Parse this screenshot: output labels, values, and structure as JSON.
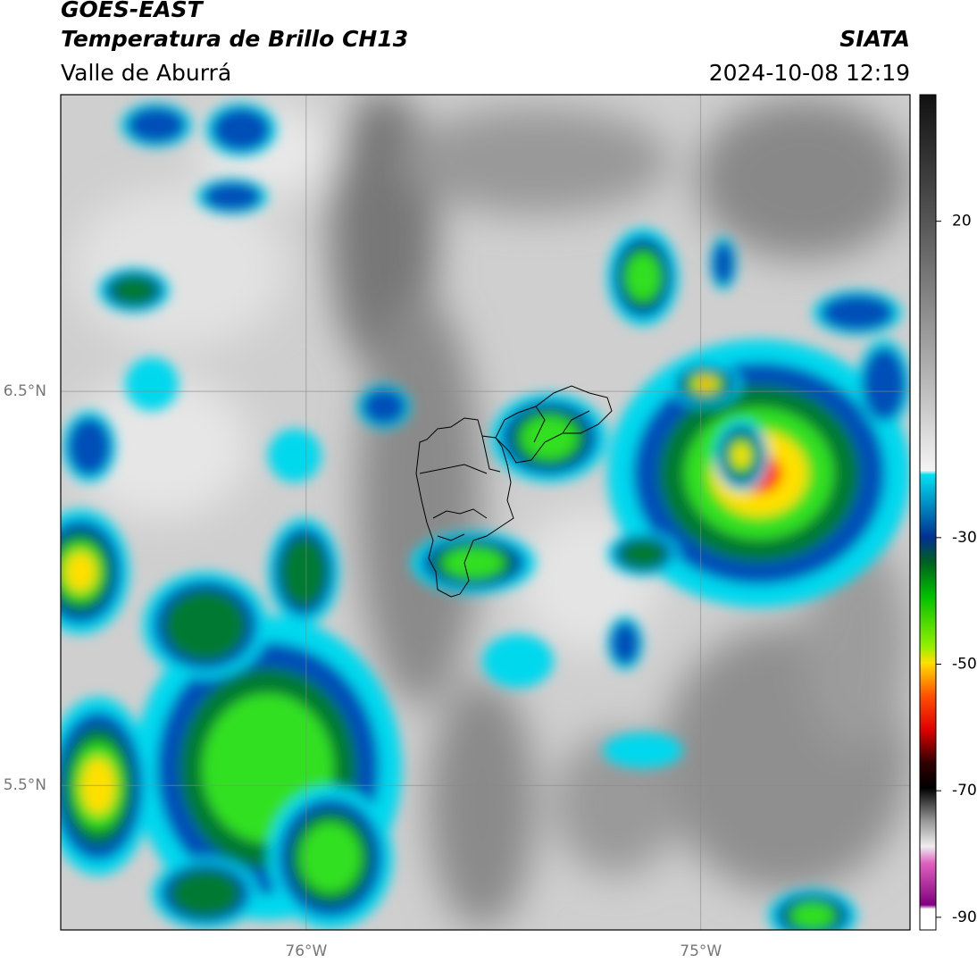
{
  "header": {
    "title": "GOES-EAST",
    "subtitle": "Temperatura de Brillo CH13",
    "source": "SIATA",
    "region": "Valle de Aburrá",
    "timestamp": "2024-10-08 12:19"
  },
  "map": {
    "xlim": [
      -76.622,
      -74.47
    ],
    "ylim": [
      5.133,
      7.253
    ],
    "xticks": [
      {
        "value": -76,
        "label": "76°W"
      },
      {
        "value": -75,
        "label": "75°W"
      }
    ],
    "yticks": [
      {
        "value": 6.5,
        "label": "6.5°N"
      },
      {
        "value": 5.5,
        "label": "5.5°N"
      }
    ],
    "grid": true
  },
  "colorbar": {
    "lim": [
      -92,
      40
    ],
    "ticks": [
      20,
      -30,
      -50,
      -70,
      -90
    ]
  }
}
